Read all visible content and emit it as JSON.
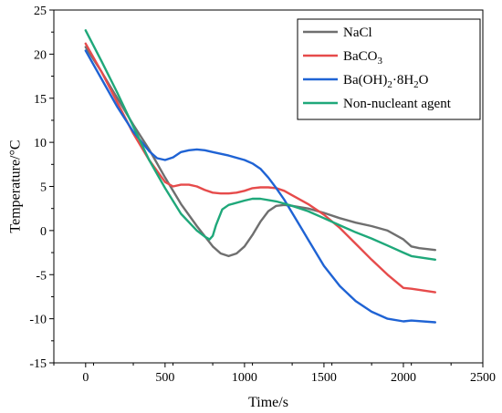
{
  "chart_data": {
    "type": "line",
    "xlabel": "Time/s",
    "ylabel": "Temperature/°C",
    "xlim": [
      -200,
      2500
    ],
    "ylim": [
      -15,
      25
    ],
    "xticks": [
      0,
      500,
      1000,
      1500,
      2000,
      2500
    ],
    "yticks": [
      -15,
      -10,
      -5,
      0,
      5,
      10,
      15,
      20,
      25
    ],
    "legend_position": "top-right",
    "series": [
      {
        "name": "NaCl",
        "legend_main": "NaCl",
        "color": "#6f6f6f",
        "x": [
          0,
          100,
          200,
          300,
          400,
          500,
          600,
          700,
          800,
          850,
          900,
          950,
          1000,
          1050,
          1100,
          1150,
          1200,
          1250,
          1300,
          1400,
          1500,
          1600,
          1700,
          1800,
          1900,
          2000,
          2050,
          2100,
          2200
        ],
        "y": [
          20.8,
          18.0,
          15.0,
          12.0,
          9.2,
          6.0,
          3.0,
          0.5,
          -1.8,
          -2.6,
          -2.9,
          -2.6,
          -1.8,
          -0.5,
          1.0,
          2.2,
          2.8,
          2.9,
          2.8,
          2.5,
          2.0,
          1.4,
          0.9,
          0.5,
          0.0,
          -1.0,
          -1.8,
          -2.0,
          -2.2
        ]
      },
      {
        "name": "BaCO3",
        "legend_main": "BaCO",
        "legend_sub": "3",
        "color": "#e64b4b",
        "x": [
          0,
          100,
          200,
          300,
          400,
          500,
          550,
          600,
          650,
          700,
          750,
          800,
          850,
          900,
          950,
          1000,
          1050,
          1100,
          1150,
          1200,
          1250,
          1300,
          1400,
          1500,
          1600,
          1700,
          1800,
          1900,
          2000,
          2050,
          2200
        ],
        "y": [
          21.2,
          18.0,
          14.5,
          11.0,
          8.0,
          5.5,
          5.0,
          5.2,
          5.2,
          5.0,
          4.6,
          4.3,
          4.2,
          4.2,
          4.3,
          4.5,
          4.8,
          4.9,
          4.9,
          4.8,
          4.5,
          4.0,
          3.0,
          1.8,
          0.3,
          -1.5,
          -3.3,
          -5.0,
          -6.5,
          -6.6,
          -7.0
        ]
      },
      {
        "name": "Ba(OH)2·8H2O",
        "legend_main": "Ba(OH)",
        "legend_sub": "2",
        "legend_tail": "·8H",
        "legend_sub2": "2",
        "legend_end": "O",
        "color": "#1f63d4",
        "x": [
          0,
          100,
          200,
          300,
          400,
          450,
          500,
          550,
          600,
          650,
          700,
          750,
          800,
          900,
          1000,
          1050,
          1100,
          1150,
          1200,
          1250,
          1300,
          1350,
          1400,
          1500,
          1600,
          1700,
          1800,
          1900,
          2000,
          2050,
          2200
        ],
        "y": [
          20.4,
          17.2,
          14.0,
          11.2,
          9.0,
          8.2,
          8.0,
          8.3,
          8.9,
          9.1,
          9.2,
          9.1,
          8.9,
          8.5,
          8.0,
          7.6,
          7.0,
          6.0,
          4.8,
          3.5,
          2.0,
          0.5,
          -1.0,
          -4.0,
          -6.3,
          -8.0,
          -9.2,
          -10.0,
          -10.3,
          -10.2,
          -10.4
        ]
      },
      {
        "name": "Non-nucleant agent",
        "legend_main": "Non-nucleant agent",
        "color": "#1fa87a",
        "x": [
          0,
          100,
          200,
          300,
          400,
          500,
          600,
          700,
          750,
          780,
          800,
          820,
          860,
          900,
          1000,
          1050,
          1100,
          1200,
          1300,
          1400,
          1500,
          1600,
          1700,
          1800,
          1900,
          2000,
          2050,
          2200
        ],
        "y": [
          22.7,
          19.2,
          15.6,
          11.8,
          8.0,
          4.8,
          1.9,
          0.0,
          -0.7,
          -1.0,
          -0.6,
          0.6,
          2.4,
          2.9,
          3.4,
          3.6,
          3.6,
          3.3,
          2.8,
          2.2,
          1.4,
          0.6,
          -0.2,
          -0.9,
          -1.7,
          -2.5,
          -2.9,
          -3.3
        ]
      }
    ]
  }
}
